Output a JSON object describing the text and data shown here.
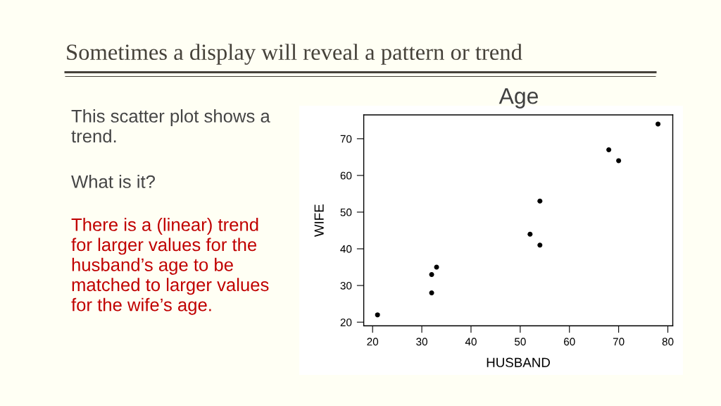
{
  "chart_data": {
    "type": "scatter",
    "title": "Sometimes a display will reveal a pattern or trend",
    "subtitle": "Age",
    "xlabel": "HUSBAND",
    "ylabel": "WIFE",
    "x": [
      21,
      32,
      32,
      33,
      52,
      54,
      54,
      68,
      70,
      78
    ],
    "series": [
      {
        "color": "#000000",
        "values": [
          22,
          28,
          33,
          35,
          44,
          41,
          53,
          67,
          64,
          74
        ]
      }
    ],
    "xlim": [
      18.2,
      81
    ],
    "ylim": [
      19,
      76.5
    ],
    "xticks": [
      20,
      30,
      40,
      50,
      60,
      70,
      80
    ],
    "yticks": [
      20,
      30,
      40,
      50,
      60,
      70
    ],
    "marker": "circle",
    "annotations": [
      "This scatter plot shows a trend.",
      "What is it?",
      "There is a (linear) trend for larger values for the husband’s age to be matched to larger values for the wife’s age."
    ]
  }
}
